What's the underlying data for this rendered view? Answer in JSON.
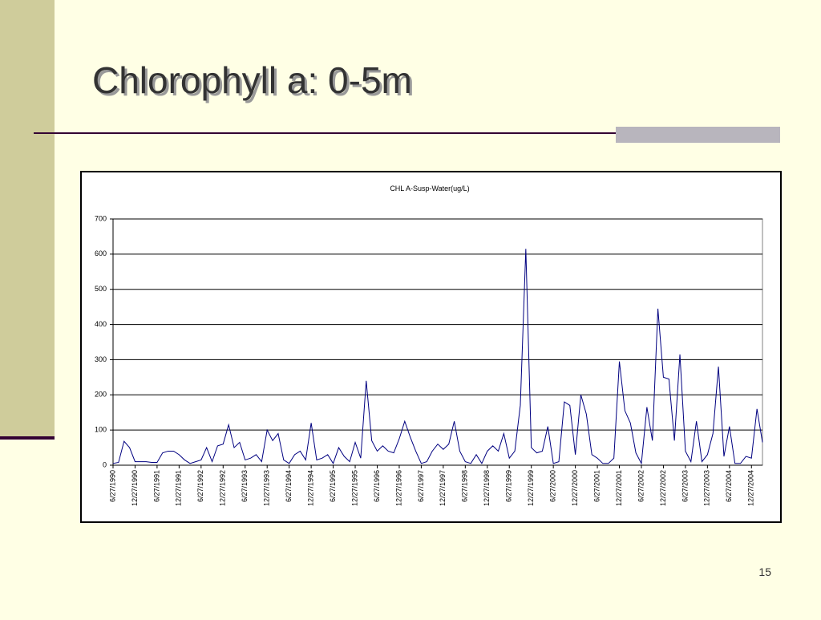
{
  "slide_title": "Chlorophyll a: 0-5m",
  "page_number": "15",
  "chart_data": {
    "type": "line",
    "title": "CHL A-Susp-Water(ug/L)",
    "color": "#000080",
    "grid": true,
    "ylim": [
      0,
      700
    ],
    "yticks": [
      0,
      100,
      200,
      300,
      400,
      500,
      600,
      700
    ],
    "categories": [
      "6/27/1990",
      null,
      null,
      null,
      "12/27/1990",
      null,
      null,
      null,
      "6/27/1991",
      null,
      null,
      null,
      "12/27/1991",
      null,
      null,
      null,
      "6/27/1992",
      null,
      null,
      null,
      "12/27/1992",
      null,
      null,
      null,
      "6/27/1993",
      null,
      null,
      null,
      "12/27/1993",
      null,
      null,
      null,
      "6/27/1994",
      null,
      null,
      null,
      "12/27/1994",
      null,
      null,
      null,
      "6/27/1995",
      null,
      null,
      null,
      "12/27/1995",
      null,
      null,
      null,
      "6/27/1996",
      null,
      null,
      null,
      "12/27/1996",
      null,
      null,
      null,
      "6/27/1997",
      null,
      null,
      null,
      "12/27/1997",
      null,
      null,
      null,
      "6/27/1998",
      null,
      null,
      null,
      "12/27/1998",
      null,
      null,
      null,
      "6/27/1999",
      null,
      null,
      null,
      "12/27/1999",
      null,
      null,
      null,
      "6/27/2000",
      null,
      null,
      null,
      "12/27/2000",
      null,
      null,
      null,
      "6/27/2001",
      null,
      null,
      null,
      "12/27/2001",
      null,
      null,
      null,
      "6/27/2002",
      null,
      null,
      null,
      "12/27/2002",
      null,
      null,
      null,
      "6/27/2003",
      null,
      null,
      null,
      "12/27/2003",
      null,
      null,
      null,
      "6/27/2004",
      null,
      null,
      null,
      "12/27/2004",
      null,
      null
    ],
    "values": [
      5,
      8,
      68,
      50,
      10,
      10,
      10,
      8,
      8,
      35,
      40,
      40,
      30,
      15,
      5,
      10,
      15,
      50,
      10,
      55,
      60,
      115,
      50,
      65,
      15,
      20,
      30,
      10,
      100,
      70,
      90,
      15,
      5,
      30,
      40,
      15,
      120,
      15,
      20,
      30,
      5,
      50,
      25,
      10,
      65,
      20,
      240,
      70,
      40,
      55,
      40,
      35,
      75,
      125,
      80,
      40,
      5,
      10,
      40,
      60,
      45,
      60,
      125,
      40,
      10,
      5,
      30,
      5,
      40,
      55,
      40,
      90,
      20,
      40,
      170,
      615,
      50,
      35,
      40,
      110,
      5,
      10,
      180,
      170,
      30,
      200,
      145,
      30,
      20,
      5,
      5,
      20,
      295,
      155,
      120,
      35,
      5,
      165,
      70,
      445,
      250,
      245,
      70,
      315,
      40,
      10,
      125,
      10,
      30,
      90,
      280,
      25,
      110,
      5,
      5,
      25,
      20,
      160,
      65
    ]
  }
}
